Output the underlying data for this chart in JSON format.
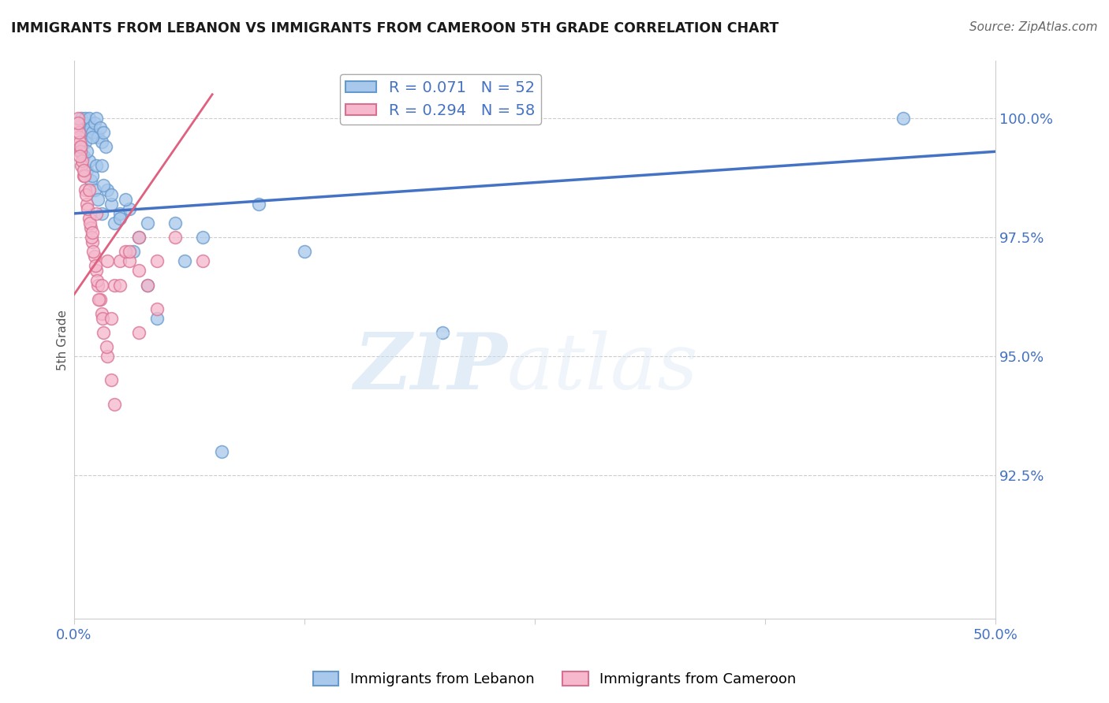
{
  "title": "IMMIGRANTS FROM LEBANON VS IMMIGRANTS FROM CAMEROON 5TH GRADE CORRELATION CHART",
  "source": "Source: ZipAtlas.com",
  "ylabel": "5th Grade",
  "xlim": [
    0.0,
    50.0
  ],
  "ylim": [
    89.5,
    101.2
  ],
  "ytick_vals": [
    92.5,
    95.0,
    97.5,
    100.0
  ],
  "ytick_labels": [
    "92.5%",
    "95.0%",
    "97.5%",
    "100.0%"
  ],
  "xtick_vals": [
    0.0,
    12.5,
    25.0,
    37.5,
    50.0
  ],
  "xtick_labels": [
    "0.0%",
    "",
    "",
    "",
    "50.0%"
  ],
  "legend_blue_label": "R = 0.071   N = 52",
  "legend_pink_label": "R = 0.294   N = 58",
  "legend_blue_color": "#a8c8ec",
  "legend_pink_color": "#f5b8cc",
  "blue_line_color": "#4472c4",
  "pink_line_color": "#e06080",
  "blue_scatter_color": "#a8c8ec",
  "blue_scatter_edge": "#6699cc",
  "pink_scatter_color": "#f5b8cc",
  "pink_scatter_edge": "#d97090",
  "blue_scatter_x": [
    0.3,
    0.4,
    0.5,
    0.6,
    0.7,
    0.8,
    0.9,
    1.0,
    1.1,
    1.2,
    1.3,
    1.4,
    1.5,
    1.6,
    1.7,
    0.3,
    0.5,
    0.7,
    0.9,
    1.1,
    1.3,
    1.5,
    1.8,
    2.0,
    2.2,
    2.5,
    3.0,
    3.5,
    4.0,
    5.5,
    7.0,
    10.0,
    1.0,
    0.6,
    0.8,
    1.2,
    1.6,
    2.0,
    2.5,
    3.2,
    4.5,
    6.0,
    12.5,
    20.0,
    0.4,
    0.7,
    1.0,
    1.5,
    2.8,
    4.0,
    45.0,
    8.0
  ],
  "blue_scatter_y": [
    99.8,
    100.0,
    99.9,
    100.0,
    99.7,
    100.0,
    99.8,
    99.7,
    99.9,
    100.0,
    99.6,
    99.8,
    99.5,
    99.7,
    99.4,
    99.3,
    99.2,
    98.9,
    98.7,
    98.5,
    98.3,
    98.0,
    98.5,
    98.2,
    97.8,
    98.0,
    98.1,
    97.5,
    96.5,
    97.8,
    97.5,
    98.2,
    98.8,
    99.5,
    99.1,
    99.0,
    98.6,
    98.4,
    97.9,
    97.2,
    95.8,
    97.0,
    97.2,
    95.5,
    99.4,
    99.3,
    99.6,
    99.0,
    98.3,
    97.8,
    100.0,
    93.0
  ],
  "pink_scatter_x": [
    0.15,
    0.2,
    0.25,
    0.3,
    0.35,
    0.4,
    0.5,
    0.6,
    0.7,
    0.8,
    0.9,
    1.0,
    1.1,
    1.2,
    1.3,
    1.4,
    1.5,
    1.6,
    1.8,
    2.0,
    2.2,
    0.25,
    0.35,
    0.45,
    0.55,
    0.65,
    0.75,
    0.85,
    0.95,
    1.05,
    1.15,
    1.25,
    1.35,
    1.55,
    1.75,
    2.5,
    3.0,
    3.5,
    4.0,
    4.5,
    2.2,
    2.8,
    3.5,
    5.5,
    7.0,
    0.3,
    0.5,
    0.8,
    1.2,
    1.8,
    2.5,
    3.5,
    0.2,
    1.0,
    1.5,
    2.0,
    3.0,
    4.5
  ],
  "pink_scatter_y": [
    99.8,
    100.0,
    99.6,
    99.5,
    99.3,
    99.0,
    98.8,
    98.5,
    98.2,
    97.9,
    97.7,
    97.4,
    97.1,
    96.8,
    96.5,
    96.2,
    95.9,
    95.5,
    95.0,
    94.5,
    94.0,
    99.7,
    99.4,
    99.1,
    98.8,
    98.4,
    98.1,
    97.8,
    97.5,
    97.2,
    96.9,
    96.6,
    96.2,
    95.8,
    95.2,
    97.0,
    97.0,
    97.5,
    96.5,
    97.0,
    96.5,
    97.2,
    96.8,
    97.5,
    97.0,
    99.2,
    98.9,
    98.5,
    98.0,
    97.0,
    96.5,
    95.5,
    99.9,
    97.6,
    96.5,
    95.8,
    97.2,
    96.0
  ],
  "blue_line_x": [
    0.0,
    50.0
  ],
  "blue_line_y": [
    98.0,
    99.3
  ],
  "pink_line_x": [
    0.0,
    7.5
  ],
  "pink_line_y": [
    96.3,
    100.5
  ],
  "watermark_zip": "ZIP",
  "watermark_atlas": "atlas",
  "background_color": "#ffffff",
  "grid_color": "#cccccc",
  "title_color": "#1a1a1a",
  "axis_label_color": "#4472c4"
}
